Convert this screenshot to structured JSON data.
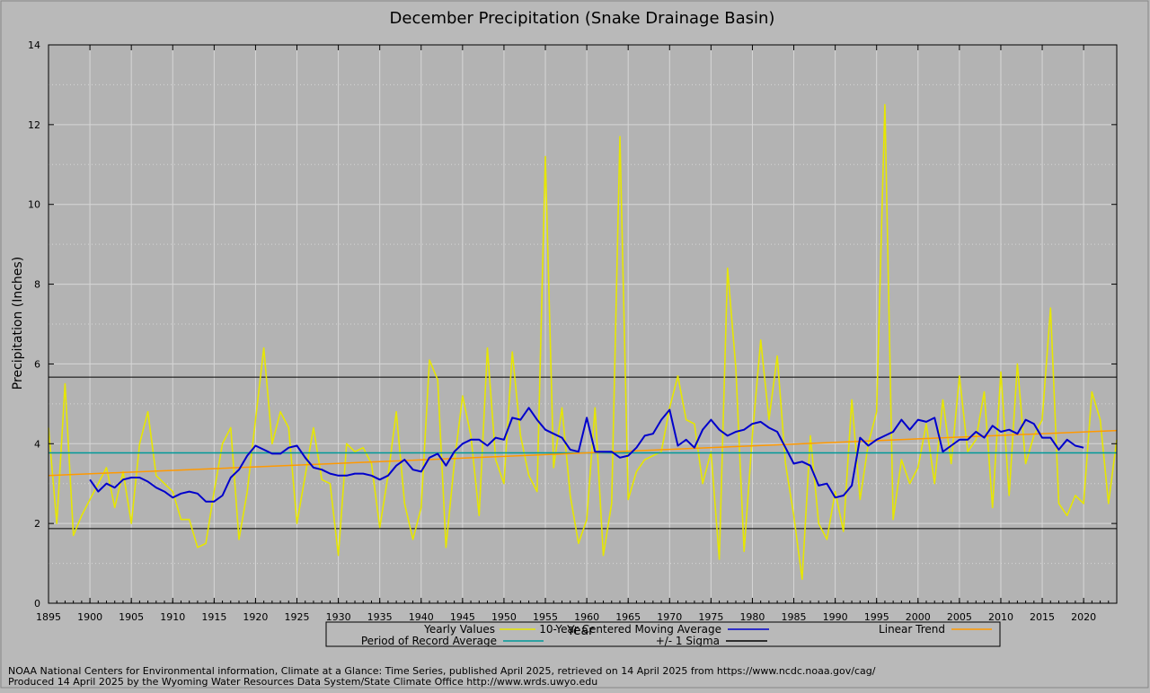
{
  "chart_data": {
    "type": "line",
    "title": "December Precipitation (Snake Drainage Basin)",
    "xlabel": "Year",
    "ylabel": "Precipitation (Inches)",
    "xlim": [
      1895,
      2024
    ],
    "ylim": [
      0,
      14
    ],
    "x_ticks": [
      1895,
      1900,
      1905,
      1910,
      1915,
      1920,
      1925,
      1930,
      1935,
      1940,
      1945,
      1950,
      1955,
      1960,
      1965,
      1970,
      1975,
      1980,
      1985,
      1990,
      1995,
      2000,
      2005,
      2010,
      2015,
      2020
    ],
    "y_ticks": [
      0,
      2,
      4,
      6,
      8,
      10,
      12,
      14
    ],
    "grid": true,
    "legend_position": "bottom",
    "series": [
      {
        "name": "Yearly Values",
        "color": "#e6e600",
        "x": [
          1895,
          1896,
          1897,
          1898,
          1899,
          1900,
          1901,
          1902,
          1903,
          1904,
          1905,
          1906,
          1907,
          1908,
          1909,
          1910,
          1911,
          1912,
          1913,
          1914,
          1915,
          1916,
          1917,
          1918,
          1919,
          1920,
          1921,
          1922,
          1923,
          1924,
          1925,
          1926,
          1927,
          1928,
          1929,
          1930,
          1931,
          1932,
          1933,
          1934,
          1935,
          1936,
          1937,
          1938,
          1939,
          1940,
          1941,
          1942,
          1943,
          1944,
          1945,
          1946,
          1947,
          1948,
          1949,
          1950,
          1951,
          1952,
          1953,
          1954,
          1955,
          1956,
          1957,
          1958,
          1959,
          1960,
          1961,
          1962,
          1963,
          1964,
          1965,
          1966,
          1967,
          1968,
          1969,
          1970,
          1971,
          1972,
          1973,
          1974,
          1975,
          1976,
          1977,
          1978,
          1979,
          1980,
          1981,
          1982,
          1983,
          1984,
          1985,
          1986,
          1987,
          1988,
          1989,
          1990,
          1991,
          1992,
          1993,
          1994,
          1995,
          1996,
          1997,
          1998,
          1999,
          2000,
          2001,
          2002,
          2003,
          2004,
          2005,
          2006,
          2007,
          2008,
          2009,
          2010,
          2011,
          2012,
          2013,
          2014,
          2015,
          2016,
          2017,
          2018,
          2019,
          2020,
          2021,
          2022,
          2023,
          2024
        ],
        "values": [
          4.4,
          2.0,
          5.5,
          1.7,
          2.2,
          2.6,
          3.0,
          3.4,
          2.4,
          3.3,
          2.0,
          4.0,
          4.8,
          3.2,
          3.0,
          2.8,
          2.1,
          2.1,
          1.4,
          1.5,
          2.8,
          4.0,
          4.4,
          1.6,
          2.8,
          4.6,
          6.4,
          4.0,
          4.8,
          4.4,
          2.0,
          3.2,
          4.4,
          3.1,
          3.0,
          1.2,
          4.0,
          3.8,
          3.9,
          3.5,
          1.9,
          3.2,
          4.8,
          2.5,
          1.6,
          2.4,
          6.1,
          5.6,
          1.4,
          3.5,
          5.2,
          4.2,
          2.2,
          6.4,
          3.6,
          3.0,
          6.3,
          4.2,
          3.2,
          2.8,
          11.2,
          3.4,
          4.9,
          2.7,
          1.5,
          2.1,
          4.9,
          1.2,
          2.5,
          11.7,
          2.6,
          3.3,
          3.6,
          3.7,
          3.8,
          4.9,
          5.7,
          4.6,
          4.5,
          3.0,
          3.8,
          1.1,
          8.4,
          5.9,
          1.3,
          4.2,
          6.6,
          4.6,
          6.2,
          3.5,
          2.2,
          0.6,
          4.2,
          2.0,
          1.6,
          2.8,
          1.8,
          5.1,
          2.6,
          4.0,
          4.8,
          12.5,
          2.1,
          3.6,
          3.0,
          3.4,
          4.5,
          3.0,
          5.1,
          3.5,
          5.7,
          3.8,
          4.1,
          5.3,
          2.4,
          5.8,
          2.7,
          6.0,
          3.5,
          4.2,
          4.6,
          7.4,
          2.5,
          2.2,
          2.7,
          2.5,
          5.3,
          4.6,
          2.5,
          4.1
        ]
      },
      {
        "name": "10-Year Centered Moving Average",
        "color": "#0000cc",
        "x": [
          1900,
          1901,
          1902,
          1903,
          1904,
          1905,
          1906,
          1907,
          1908,
          1909,
          1910,
          1911,
          1912,
          1913,
          1914,
          1915,
          1916,
          1917,
          1918,
          1919,
          1920,
          1921,
          1922,
          1923,
          1924,
          1925,
          1926,
          1927,
          1928,
          1929,
          1930,
          1931,
          1932,
          1933,
          1934,
          1935,
          1936,
          1937,
          1938,
          1939,
          1940,
          1941,
          1942,
          1943,
          1944,
          1945,
          1946,
          1947,
          1948,
          1949,
          1950,
          1951,
          1952,
          1953,
          1954,
          1955,
          1956,
          1957,
          1958,
          1959,
          1960,
          1961,
          1962,
          1963,
          1964,
          1965,
          1966,
          1967,
          1968,
          1969,
          1970,
          1971,
          1972,
          1973,
          1974,
          1975,
          1976,
          1977,
          1978,
          1979,
          1980,
          1981,
          1982,
          1983,
          1984,
          1985,
          1986,
          1987,
          1988,
          1989,
          1990,
          1991,
          1992,
          1993,
          1994,
          1995,
          1996,
          1997,
          1998,
          1999,
          2000,
          2001,
          2002,
          2003,
          2004,
          2005,
          2006,
          2007,
          2008,
          2009,
          2010,
          2011,
          2012,
          2013,
          2014,
          2015,
          2016,
          2017,
          2018,
          2019,
          2020
        ],
        "values": [
          3.1,
          2.8,
          3.0,
          2.9,
          3.1,
          3.15,
          3.15,
          3.05,
          2.9,
          2.8,
          2.65,
          2.75,
          2.8,
          2.75,
          2.55,
          2.55,
          2.7,
          3.15,
          3.35,
          3.7,
          3.95,
          3.85,
          3.75,
          3.75,
          3.9,
          3.95,
          3.65,
          3.4,
          3.35,
          3.25,
          3.2,
          3.2,
          3.25,
          3.25,
          3.2,
          3.1,
          3.2,
          3.45,
          3.6,
          3.35,
          3.3,
          3.65,
          3.75,
          3.45,
          3.8,
          4.0,
          4.1,
          4.1,
          3.95,
          4.15,
          4.1,
          4.65,
          4.6,
          4.9,
          4.6,
          4.35,
          4.25,
          4.15,
          3.85,
          3.8,
          4.65,
          3.8,
          3.8,
          3.8,
          3.65,
          3.7,
          3.9,
          4.2,
          4.25,
          4.6,
          4.85,
          3.95,
          4.1,
          3.9,
          4.35,
          4.6,
          4.35,
          4.2,
          4.3,
          4.35,
          4.5,
          4.55,
          4.4,
          4.3,
          3.9,
          3.5,
          3.55,
          3.45,
          2.95,
          3.0,
          2.65,
          2.7,
          2.95,
          4.15,
          3.95,
          4.1,
          4.2,
          4.3,
          4.6,
          4.35,
          4.6,
          4.55,
          4.65,
          3.8,
          3.95,
          4.1,
          4.1,
          4.3,
          4.15,
          4.45,
          4.3,
          4.35,
          4.25,
          4.6,
          4.5,
          4.15,
          4.15,
          3.85,
          4.1,
          3.95,
          3.9
        ]
      },
      {
        "name": "Linear Trend",
        "color": "#ff9900",
        "x": [
          1895,
          2024
        ],
        "values": [
          3.2,
          4.33
        ]
      },
      {
        "name": "Period of Record Average",
        "color": "#009999",
        "x": [
          1895,
          2024
        ],
        "values": [
          3.77,
          3.77
        ]
      },
      {
        "name": "+/- 1 Sigma",
        "color": "#000000",
        "upper": 5.67,
        "lower": 1.87
      }
    ]
  },
  "footer": {
    "line1": "NOAA National Centers for Environmental information, Climate at a Glance: Time Series, published April 2025, retrieved on 14 April 2025 from https://www.ncdc.noaa.gov/cag/",
    "line2": "Produced 14 April 2025 by the Wyoming Water Resources Data System/State Climate Office http://www.wrds.uwyo.edu"
  }
}
